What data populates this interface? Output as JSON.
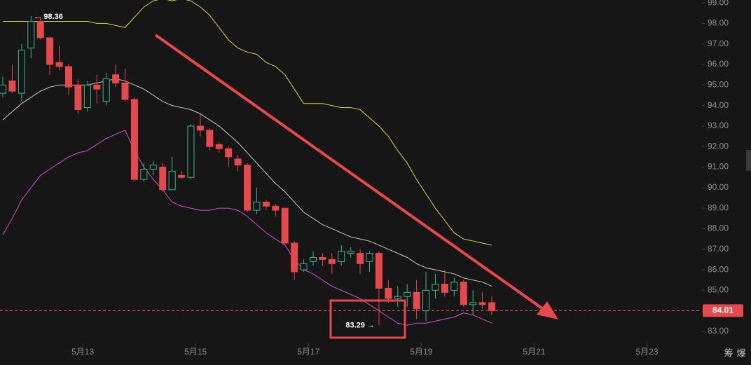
{
  "chart_data": {
    "type": "candlestick",
    "categories": [
      null,
      null,
      null,
      null,
      null,
      null,
      null,
      null,
      null,
      null,
      null,
      null,
      null,
      null,
      null,
      null,
      null,
      null,
      null,
      null,
      null,
      null,
      null,
      null,
      null,
      null,
      null,
      null,
      null,
      null,
      null,
      null,
      null,
      null,
      null,
      null,
      null,
      null,
      null,
      null,
      null,
      null,
      null,
      null,
      null,
      null,
      null,
      null,
      null,
      null,
      null,
      null,
      null
    ],
    "open": [
      94.6,
      95.2,
      94.6,
      96.8,
      98.1,
      97.3,
      96.1,
      95.9,
      95.0,
      93.9,
      95.0,
      94.2,
      95.5,
      95.1,
      94.3,
      90.4,
      90.9,
      91.0,
      89.9,
      90.6,
      90.5,
      93.0,
      92.8,
      92.1,
      91.9,
      91.4,
      91.1,
      88.9,
      89.3,
      89.1,
      89.0,
      87.3,
      86.0,
      86.4,
      86.6,
      86.5,
      86.4,
      86.8,
      86.8,
      86.4,
      86.8,
      85.1,
      84.6,
      84.7,
      84.9,
      84.0,
      85.0,
      85.3,
      85.0,
      85.4,
      84.3,
      84.4,
      84.4
    ],
    "high": [
      95.4,
      96.0,
      97.0,
      98.36,
      98.3,
      97.3,
      96.9,
      96.0,
      95.3,
      95.2,
      95.5,
      95.6,
      96.0,
      95.8,
      94.4,
      91.2,
      91.3,
      91.2,
      91.5,
      90.8,
      93.1,
      93.6,
      92.9,
      92.2,
      92.0,
      91.6,
      91.2,
      90.0,
      89.4,
      89.2,
      89.0,
      87.4,
      86.5,
      86.9,
      86.8,
      86.8,
      87.2,
      87.1,
      87.0,
      86.9,
      86.9,
      85.5,
      85.2,
      85.3,
      85.5,
      85.9,
      85.8,
      86.0,
      85.6,
      85.5,
      85.0,
      84.9,
      84.7
    ],
    "low": [
      94.4,
      94.6,
      94.2,
      96.3,
      97.2,
      95.5,
      95.7,
      94.5,
      93.6,
      93.7,
      94.1,
      94.0,
      94.9,
      94.2,
      90.3,
      90.3,
      90.6,
      89.8,
      89.9,
      90.4,
      90.4,
      92.5,
      91.8,
      91.7,
      91.0,
      90.8,
      88.8,
      88.7,
      88.9,
      88.6,
      87.2,
      85.5,
      85.9,
      86.2,
      86.2,
      85.8,
      86.2,
      86.6,
      85.8,
      85.9,
      83.29,
      84.4,
      84.2,
      84.2,
      83.6,
      83.5,
      84.6,
      84.7,
      84.7,
      84.2,
      83.8,
      84.1,
      83.8
    ],
    "close": [
      95.0,
      94.7,
      96.7,
      98.1,
      97.3,
      96.0,
      95.9,
      94.9,
      93.8,
      95.0,
      94.8,
      95.3,
      95.1,
      94.3,
      90.4,
      90.9,
      91.1,
      89.9,
      90.8,
      90.5,
      93.0,
      92.8,
      92.0,
      91.9,
      91.5,
      91.1,
      88.9,
      89.3,
      89.1,
      88.9,
      87.3,
      85.9,
      86.3,
      86.6,
      86.5,
      86.3,
      86.9,
      86.9,
      86.3,
      86.8,
      85.1,
      84.6,
      84.7,
      84.9,
      84.1,
      85.0,
      85.3,
      84.9,
      85.4,
      84.3,
      84.4,
      84.3,
      84.01
    ],
    "up_color": "#35b88a",
    "down_color": "#e5484d",
    "bands": [
      {
        "color": "#d6d63c",
        "values": [
          98.1,
          98.1,
          98.1,
          98.1,
          98.1,
          98.1,
          98.1,
          98.1,
          98.1,
          98.1,
          98.0,
          98.0,
          97.9,
          97.8,
          98.3,
          98.8,
          99.1,
          99.2,
          99.1,
          99.2,
          99.1,
          98.8,
          98.4,
          97.8,
          97.2,
          96.8,
          96.6,
          96.5,
          96.1,
          95.9,
          95.5,
          94.8,
          94.1,
          94.1,
          94.1,
          94.0,
          93.9,
          93.9,
          93.8,
          93.4,
          93.0,
          92.5,
          91.8,
          91.2,
          90.4,
          89.7,
          89.0,
          88.4,
          87.8,
          87.5,
          87.4,
          87.3,
          87.2
        ]
      },
      {
        "color": "#c8c8c8",
        "values": [
          93.3,
          93.7,
          94.1,
          94.4,
          94.7,
          94.9,
          95.0,
          95.0,
          95.0,
          95.0,
          95.1,
          95.2,
          95.3,
          95.2,
          95.0,
          94.8,
          94.5,
          94.2,
          94.0,
          93.9,
          93.8,
          93.6,
          93.3,
          93.0,
          92.6,
          92.2,
          91.7,
          91.2,
          90.7,
          90.2,
          89.8,
          89.3,
          88.8,
          88.5,
          88.2,
          88.0,
          87.8,
          87.6,
          87.5,
          87.4,
          87.2,
          87.0,
          86.8,
          86.6,
          86.3,
          86.1,
          86.0,
          85.9,
          85.8,
          85.6,
          85.5,
          85.4,
          85.2
        ]
      },
      {
        "color": "#d24fc8",
        "values": [
          87.7,
          88.5,
          89.4,
          90.0,
          90.6,
          90.9,
          91.2,
          91.5,
          91.7,
          91.8,
          92.1,
          92.4,
          92.6,
          92.8,
          91.8,
          91.0,
          90.4,
          89.9,
          89.3,
          89.1,
          89.0,
          88.9,
          88.9,
          89.0,
          89.0,
          88.9,
          88.6,
          88.2,
          87.8,
          87.5,
          87.2,
          86.5,
          86.0,
          85.8,
          85.5,
          85.2,
          85.0,
          84.8,
          84.6,
          84.3,
          84.0,
          83.7,
          83.4,
          83.3,
          83.4,
          83.4,
          83.5,
          83.6,
          83.7,
          83.9,
          83.8,
          83.6,
          83.4
        ]
      }
    ],
    "xlim": [
      -0.3,
      74.2
    ],
    "xticks": [
      {
        "value": 8.5,
        "label": "5月13"
      },
      {
        "value": 20.5,
        "label": "5月15"
      },
      {
        "value": 32.5,
        "label": "5月17"
      },
      {
        "value": 44.5,
        "label": "5月19"
      },
      {
        "value": 56.5,
        "label": "5月21"
      },
      {
        "value": 68.5,
        "label": "5月23"
      }
    ],
    "ylim": [
      82.42,
      99.14
    ],
    "yticks": [
      {
        "value": 83,
        "label": "83.00"
      },
      {
        "value": 84,
        "label": "84.00"
      },
      {
        "value": 85,
        "label": "85.00"
      },
      {
        "value": 86,
        "label": "86.00"
      },
      {
        "value": 87,
        "label": "87.00"
      },
      {
        "value": 88,
        "label": "88.00"
      },
      {
        "value": 89,
        "label": "89.00"
      },
      {
        "value": 90,
        "label": "90.00"
      },
      {
        "value": 91,
        "label": "91.00"
      },
      {
        "value": 92,
        "label": "92.00"
      },
      {
        "value": 93,
        "label": "93.00"
      },
      {
        "value": 94,
        "label": "94.00"
      },
      {
        "value": 95,
        "label": "95.00"
      },
      {
        "value": 96,
        "label": "96.00"
      },
      {
        "value": 97,
        "label": "97.00"
      },
      {
        "value": 98,
        "label": "98.00"
      },
      {
        "value": 99,
        "label": "99.00"
      }
    ],
    "last_price": 84.01,
    "high_annotation": "← 98.36",
    "low_annotation": "83.29 →",
    "toolbar": [
      "筹",
      "爆"
    ]
  }
}
